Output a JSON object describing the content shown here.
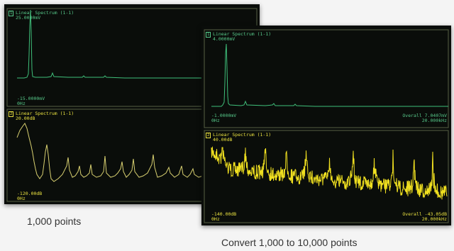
{
  "panels": [
    {
      "id": "left",
      "top": {
        "tag": "1",
        "title": "Linear Spectrum (1-1)",
        "scale_top": "25.0000mV",
        "scale_bottom": "-15.0000mV",
        "x_start": "0Hz",
        "color": "#3fbf7a"
      },
      "bottom": {
        "tag": "2",
        "title": "Linear Spectrum (1-1)",
        "scale_top": "20.00dB",
        "scale_bottom": "-120.00dB",
        "x_start": "0Hz",
        "color": "#d8d070"
      },
      "caption": "1,000 points"
    },
    {
      "id": "right",
      "top": {
        "tag": "1",
        "title": "Linear Spectrum (1-1)",
        "scale_top": "4.0000mV",
        "scale_bottom": "-1.0000mV",
        "x_start": "0Hz",
        "overall": "Overall 7.0407mV",
        "x_end": "20.000kHz",
        "color": "#3fbf7a"
      },
      "bottom": {
        "tag": "2",
        "title": "Linear Spectrum (1-1)",
        "scale_top": "40.00dB",
        "scale_bottom": "-140.00dB",
        "x_start": "0Hz",
        "overall": "Overall -43.05dB",
        "x_end": "20.000kHz",
        "color": "#f0e020"
      },
      "caption": "Convert 1,000 to 10,000 points"
    }
  ]
}
